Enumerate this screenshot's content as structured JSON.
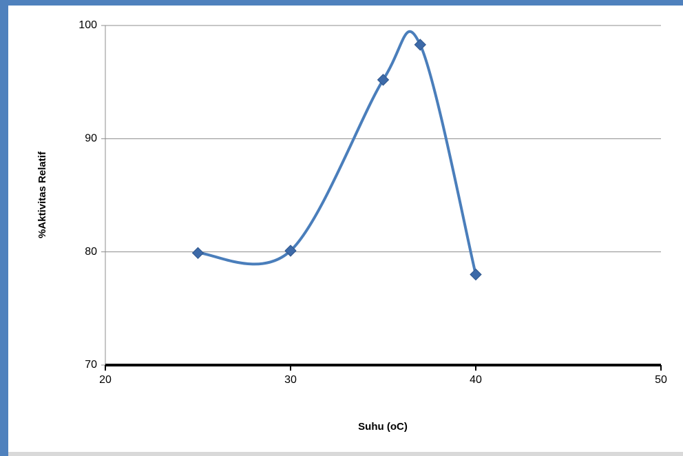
{
  "chart_data": {
    "type": "line",
    "smooth": true,
    "x_label": "Suhu (oC)",
    "y_label": "%Aktivitas Relatif",
    "x": [
      25,
      30,
      35,
      37,
      40
    ],
    "series": [
      {
        "color": "#4a7ebb",
        "values": [
          79.9,
          80.1,
          95.2,
          98.3,
          78.0
        ]
      }
    ],
    "xlim": [
      20,
      50
    ],
    "xticks": [
      20,
      30,
      40,
      50
    ],
    "ylim": [
      70,
      100
    ],
    "yticks": [
      70,
      80,
      90,
      100
    ],
    "grid": true
  }
}
